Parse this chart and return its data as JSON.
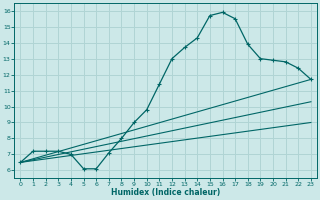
{
  "xlabel": "Humidex (Indice chaleur)",
  "xlim": [
    -0.5,
    23.5
  ],
  "ylim": [
    5.5,
    16.5
  ],
  "xticks": [
    0,
    1,
    2,
    3,
    4,
    5,
    6,
    7,
    8,
    9,
    10,
    11,
    12,
    13,
    14,
    15,
    16,
    17,
    18,
    19,
    20,
    21,
    22,
    23
  ],
  "yticks": [
    6,
    7,
    8,
    9,
    10,
    11,
    12,
    13,
    14,
    15,
    16
  ],
  "bg_color": "#cce8e8",
  "grid_color": "#b0d4d4",
  "line_color": "#006666",
  "line1_x": [
    0,
    1,
    2,
    3,
    4,
    5,
    6,
    7,
    8,
    9,
    10,
    11,
    12,
    13,
    14,
    15,
    16,
    17,
    18,
    19,
    20,
    21,
    22,
    23
  ],
  "line1_y": [
    6.5,
    7.2,
    7.2,
    7.2,
    7.0,
    6.1,
    6.1,
    7.1,
    8.0,
    9.0,
    9.8,
    11.4,
    13.0,
    13.7,
    14.3,
    15.7,
    15.9,
    15.5,
    13.9,
    13.0,
    12.9,
    12.8,
    12.4,
    11.7
  ],
  "line2_x": [
    0,
    23
  ],
  "line2_y": [
    6.5,
    11.7
  ],
  "line3_x": [
    0,
    23
  ],
  "line3_y": [
    6.5,
    9.0
  ],
  "line4_x": [
    0,
    23
  ],
  "line4_y": [
    6.5,
    11.7
  ]
}
